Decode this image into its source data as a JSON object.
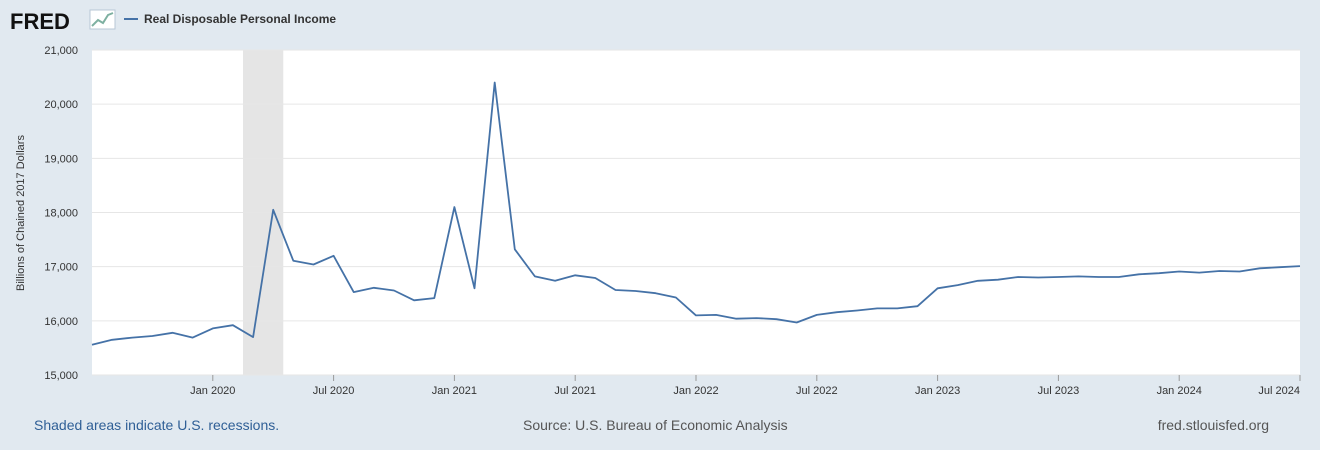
{
  "logo": {
    "text": "FRED"
  },
  "legend": {
    "label": "Real Disposable Personal Income",
    "color": "#4572a7"
  },
  "footer": {
    "left": "Shaded areas indicate U.S. recessions.",
    "center": "Source: U.S. Bureau of Economic Analysis",
    "right": "fred.stlouisfed.org"
  },
  "colors": {
    "series": "#4572a7",
    "recession": "#e5e5e5",
    "plot_bg": "#ffffff",
    "page_bg": "#e1e9f0"
  },
  "chart_data": {
    "type": "line",
    "title": "",
    "xlabel": "",
    "ylabel": "Billions of Chained 2017 Dollars",
    "ylim": [
      15000,
      21000
    ],
    "yticks": [
      15000,
      16000,
      17000,
      18000,
      19000,
      20000,
      21000
    ],
    "ytick_labels": [
      "15,000",
      "16,000",
      "17,000",
      "18,000",
      "19,000",
      "20,000",
      "21,000"
    ],
    "xlim": [
      "2019-07",
      "2024-07"
    ],
    "xticks": [
      "2020-01",
      "2020-07",
      "2021-01",
      "2021-07",
      "2022-01",
      "2022-07",
      "2023-01",
      "2023-07",
      "2024-01",
      "2024-07"
    ],
    "xtick_labels": [
      "Jan 2020",
      "Jul 2020",
      "Jan 2021",
      "Jul 2021",
      "Jan 2022",
      "Jul 2022",
      "Jan 2023",
      "Jul 2023",
      "Jan 2024",
      "Jul 2024"
    ],
    "grid": true,
    "legend_position": "top-left",
    "recessions": [
      {
        "start": "2020-02",
        "end": "2020-04"
      }
    ],
    "series": [
      {
        "name": "Real Disposable Personal Income",
        "x": [
          "2019-07",
          "2019-08",
          "2019-09",
          "2019-10",
          "2019-11",
          "2019-12",
          "2020-01",
          "2020-02",
          "2020-03",
          "2020-04",
          "2020-05",
          "2020-06",
          "2020-07",
          "2020-08",
          "2020-09",
          "2020-10",
          "2020-11",
          "2020-12",
          "2021-01",
          "2021-02",
          "2021-03",
          "2021-04",
          "2021-05",
          "2021-06",
          "2021-07",
          "2021-08",
          "2021-09",
          "2021-10",
          "2021-11",
          "2021-12",
          "2022-01",
          "2022-02",
          "2022-03",
          "2022-04",
          "2022-05",
          "2022-06",
          "2022-07",
          "2022-08",
          "2022-09",
          "2022-10",
          "2022-11",
          "2022-12",
          "2023-01",
          "2023-02",
          "2023-03",
          "2023-04",
          "2023-05",
          "2023-06",
          "2023-07",
          "2023-08",
          "2023-09",
          "2023-10",
          "2023-11",
          "2023-12",
          "2024-01",
          "2024-02",
          "2024-03",
          "2024-04",
          "2024-05",
          "2024-06",
          "2024-07"
        ],
        "values": [
          15560,
          15650,
          15690,
          15720,
          15780,
          15690,
          15860,
          15920,
          15700,
          18050,
          17110,
          17040,
          17200,
          16530,
          16610,
          16560,
          16380,
          16420,
          18100,
          16600,
          20400,
          17320,
          16820,
          16740,
          16840,
          16790,
          16570,
          16550,
          16510,
          16430,
          16100,
          16110,
          16040,
          16050,
          16030,
          15970,
          16110,
          16160,
          16190,
          16230,
          16230,
          16270,
          16600,
          16660,
          16740,
          16760,
          16810,
          16800,
          16810,
          16820,
          16810,
          16810,
          16860,
          16880,
          16910,
          16890,
          16920,
          16910,
          16970,
          16990,
          17010
        ]
      }
    ]
  }
}
